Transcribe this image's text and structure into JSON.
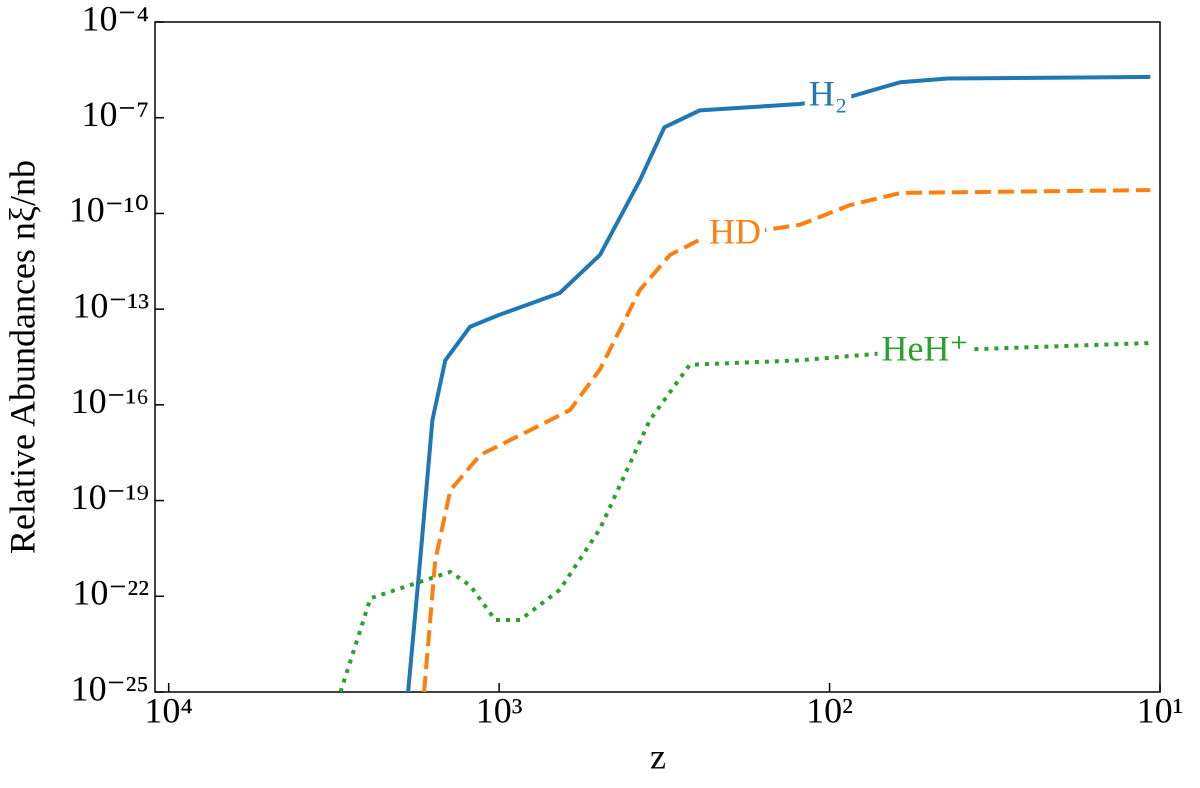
{
  "chart_data": {
    "type": "line",
    "x_label": "z",
    "y_label": "Relative Abundances nξ/nb",
    "xscale": "log",
    "yscale": "log",
    "xlim": [
      11000,
      10
    ],
    "ylim": [
      1e-25,
      0.0001
    ],
    "xticks": [
      {
        "value": 10000,
        "label": "10⁴"
      },
      {
        "value": 1000,
        "label": "10³"
      },
      {
        "value": 100,
        "label": "10²"
      },
      {
        "value": 10,
        "label": "10¹"
      }
    ],
    "yticks": [
      {
        "value": 0.0001,
        "label": "10⁻⁴"
      },
      {
        "value": 1e-07,
        "label": "10⁻⁷"
      },
      {
        "value": 1e-10,
        "label": "10⁻¹⁰"
      },
      {
        "value": 1e-13,
        "label": "10⁻¹³"
      },
      {
        "value": 1e-16,
        "label": "10⁻¹⁶"
      },
      {
        "value": 1e-19,
        "label": "10⁻¹⁹"
      },
      {
        "value": 1e-22,
        "label": "10⁻²²"
      },
      {
        "value": 1e-25,
        "label": "10⁻²⁵"
      }
    ],
    "series": [
      {
        "name": "H₂",
        "color": "#1f77b4",
        "style": "solid",
        "x": [
          1885,
          1734,
          1592,
          1455,
          1225,
          1000,
          655,
          495,
          375,
          316,
          247,
          123,
          87,
          61,
          44,
          10.7
        ],
        "values": [
          1e-25,
          1.3e-21,
          3.3e-17,
          2.5e-15,
          2.8e-14,
          6.6e-14,
          3.2e-13,
          5e-12,
          1.1e-09,
          5e-08,
          1.7e-07,
          2.7e-07,
          4.5e-07,
          1.3e-06,
          1.7e-06,
          1.9e-06
        ]
      },
      {
        "name": "HD",
        "color": "#ff7f0e",
        "style": "dashed",
        "x": [
          1687,
          1561,
          1405,
          1141,
          805,
          610,
          495,
          375,
          304,
          247,
          123,
          87,
          61,
          10.7
        ],
        "values": [
          1e-25,
          1.3e-21,
          2.1e-19,
          2.7e-18,
          1.6e-17,
          6.9e-17,
          1.3e-15,
          4e-13,
          5e-12,
          1.5e-11,
          4.4e-11,
          1.8e-10,
          4.4e-10,
          5.4e-10
        ]
      },
      {
        "name": "HeH⁺",
        "color": "#2ca02c",
        "style": "dotted",
        "x": [
          3020,
          2450,
          1405,
          1225,
          1028,
          864,
          655,
          495,
          350,
          265,
          123,
          61,
          10.7
        ],
        "values": [
          1e-25,
          8.7e-23,
          5.8e-22,
          2.2e-22,
          1.8e-23,
          1.8e-23,
          1.6e-22,
          1.3e-20,
          3.3e-17,
          1.8e-15,
          2.5e-15,
          4.6e-15,
          8.7e-15
        ]
      }
    ]
  }
}
